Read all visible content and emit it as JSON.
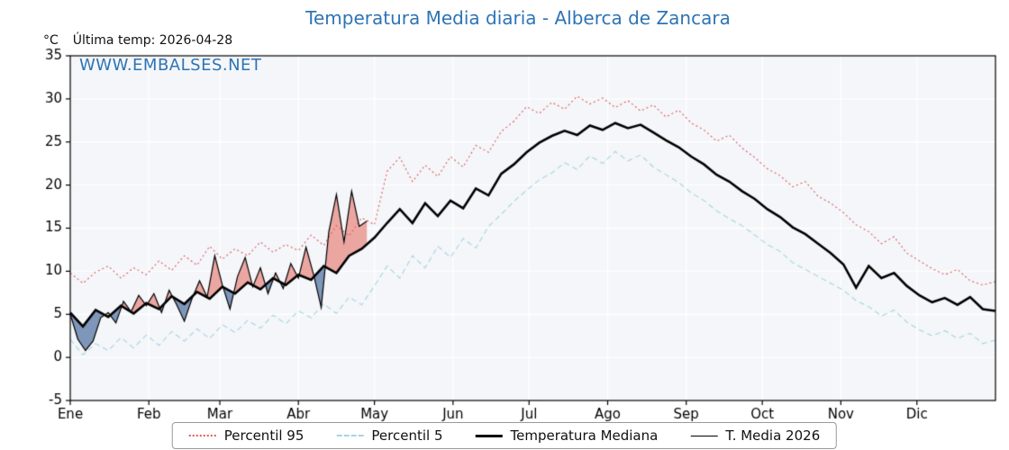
{
  "header": {
    "title": "Temperatura Media diaria - Alberca de Zancara",
    "y_unit": "°C",
    "last_temp": "Última temp: 2026-04-28",
    "watermark": "WWW.EMBALSES.NET"
  },
  "legend": {
    "items": [
      {
        "label": "Percentil 95",
        "color": "#dd5c5c",
        "style": "dotted"
      },
      {
        "label": "Percentil 5",
        "color": "#a6d4e4",
        "style": "dashed"
      },
      {
        "label": "Temperatura Mediana",
        "color": "#000000",
        "style": "thick-solid"
      },
      {
        "label": "T. Media 2026",
        "color": "#000000",
        "style": "thin-solid"
      }
    ]
  },
  "chart_data": {
    "type": "line",
    "title": "Temperatura Media diaria - Alberca de Zancara",
    "xlabel": "",
    "ylabel": "°C",
    "ylim": [
      -5,
      35
    ],
    "yticks": [
      -5,
      0,
      5,
      10,
      15,
      20,
      25,
      30,
      35
    ],
    "x_months": [
      "Ene",
      "Feb",
      "Mar",
      "Abr",
      "May",
      "Jun",
      "Jul",
      "Ago",
      "Sep",
      "Oct",
      "Nov",
      "Dic"
    ],
    "month_start_days": [
      0,
      31,
      59,
      90,
      120,
      151,
      181,
      212,
      243,
      273,
      304,
      334
    ],
    "days_in_year": 365,
    "plot_bg": "#f4f6f9",
    "grid_color": "#ffffff",
    "axis_color": "#000000",
    "legend_position": "bottom-center",
    "annotation": "Última temp: 2026-04-28",
    "series": [
      {
        "name": "Percentil 95",
        "color": "#dd5c5c",
        "dash": [
          2,
          3
        ],
        "width": 1.1,
        "step": 5,
        "values": [
          9.8,
          8.6,
          9.9,
          10.6,
          9.2,
          10.4,
          9.6,
          11.2,
          10.1,
          11.8,
          10.7,
          12.9,
          11.4,
          12.6,
          11.8,
          13.4,
          12.2,
          13.1,
          12.4,
          14.2,
          13.0,
          15.3,
          14.1,
          16.2,
          15.4,
          21.6,
          23.2,
          20.4,
          22.3,
          21.0,
          23.3,
          22.1,
          24.6,
          23.8,
          26.2,
          27.4,
          29.1,
          28.3,
          29.6,
          28.8,
          30.3,
          29.4,
          30.1,
          29.0,
          29.8,
          28.6,
          29.3,
          27.9,
          28.7,
          27.2,
          26.4,
          25.1,
          25.8,
          24.3,
          23.2,
          21.9,
          21.1,
          19.8,
          20.4,
          18.7,
          17.9,
          16.8,
          15.4,
          14.6,
          13.2,
          14.0,
          12.1,
          11.2,
          10.3,
          9.6,
          10.2,
          8.9,
          8.4,
          8.8
        ]
      },
      {
        "name": "Percentil 5",
        "color": "#a6d4e4",
        "dash": [
          6,
          4
        ],
        "width": 1.1,
        "step": 5,
        "values": [
          2.1,
          0.3,
          1.6,
          0.8,
          2.3,
          1.1,
          2.6,
          1.4,
          3.0,
          1.9,
          3.3,
          2.2,
          3.8,
          2.9,
          4.3,
          3.4,
          4.9,
          3.9,
          5.4,
          4.6,
          6.2,
          5.1,
          7.0,
          6.1,
          8.3,
          10.6,
          9.2,
          11.8,
          10.4,
          12.9,
          11.6,
          13.8,
          12.7,
          15.2,
          16.6,
          18.1,
          19.4,
          20.6,
          21.4,
          22.6,
          21.8,
          23.4,
          22.5,
          23.9,
          22.8,
          23.5,
          22.1,
          21.2,
          20.3,
          19.1,
          18.2,
          17.0,
          16.1,
          15.3,
          14.2,
          13.1,
          12.3,
          11.0,
          10.2,
          9.4,
          8.6,
          7.8,
          6.6,
          5.9,
          4.8,
          5.5,
          4.1,
          3.2,
          2.5,
          3.1,
          2.2,
          2.8,
          1.6,
          2.0
        ]
      },
      {
        "name": "Temperatura Mediana",
        "color": "#000000",
        "dash": [],
        "width": 2.6,
        "step": 5,
        "values": [
          5.2,
          3.6,
          5.5,
          4.7,
          6.0,
          5.1,
          6.3,
          5.6,
          7.1,
          6.2,
          7.6,
          6.8,
          8.2,
          7.4,
          8.7,
          7.9,
          9.2,
          8.4,
          9.6,
          9.0,
          10.6,
          9.8,
          11.8,
          12.6,
          13.9,
          15.6,
          17.2,
          15.6,
          17.9,
          16.4,
          18.2,
          17.3,
          19.6,
          18.8,
          21.3,
          22.4,
          23.8,
          24.9,
          25.7,
          26.3,
          25.8,
          26.9,
          26.4,
          27.2,
          26.6,
          27.0,
          26.1,
          25.2,
          24.4,
          23.3,
          22.4,
          21.2,
          20.4,
          19.3,
          18.4,
          17.2,
          16.3,
          15.1,
          14.3,
          13.2,
          12.1,
          10.8,
          8.1,
          10.6,
          9.2,
          9.8,
          8.3,
          7.2,
          6.4,
          6.9,
          6.1,
          7.0,
          5.6,
          5.4
        ]
      },
      {
        "name": "T. Media 2026",
        "color": "#000000",
        "dash": [],
        "width": 1.2,
        "step": 3,
        "fill_vs": "Temperatura Mediana",
        "fill_above_color": "rgba(228,85,75,0.5)",
        "fill_below_color": "rgba(70,105,155,0.68)",
        "values": [
          5.0,
          2.1,
          0.8,
          1.9,
          4.6,
          5.2,
          4.0,
          6.5,
          5.3,
          7.2,
          6.0,
          7.4,
          5.2,
          7.8,
          6.1,
          4.2,
          6.8,
          8.9,
          7.0,
          11.8,
          8.4,
          5.6,
          9.4,
          11.6,
          8.2,
          10.4,
          7.4,
          9.8,
          8.0,
          10.9,
          9.2,
          12.8,
          9.6,
          5.8,
          14.6,
          18.9,
          13.4,
          19.3,
          15.2,
          15.8
        ]
      }
    ]
  }
}
